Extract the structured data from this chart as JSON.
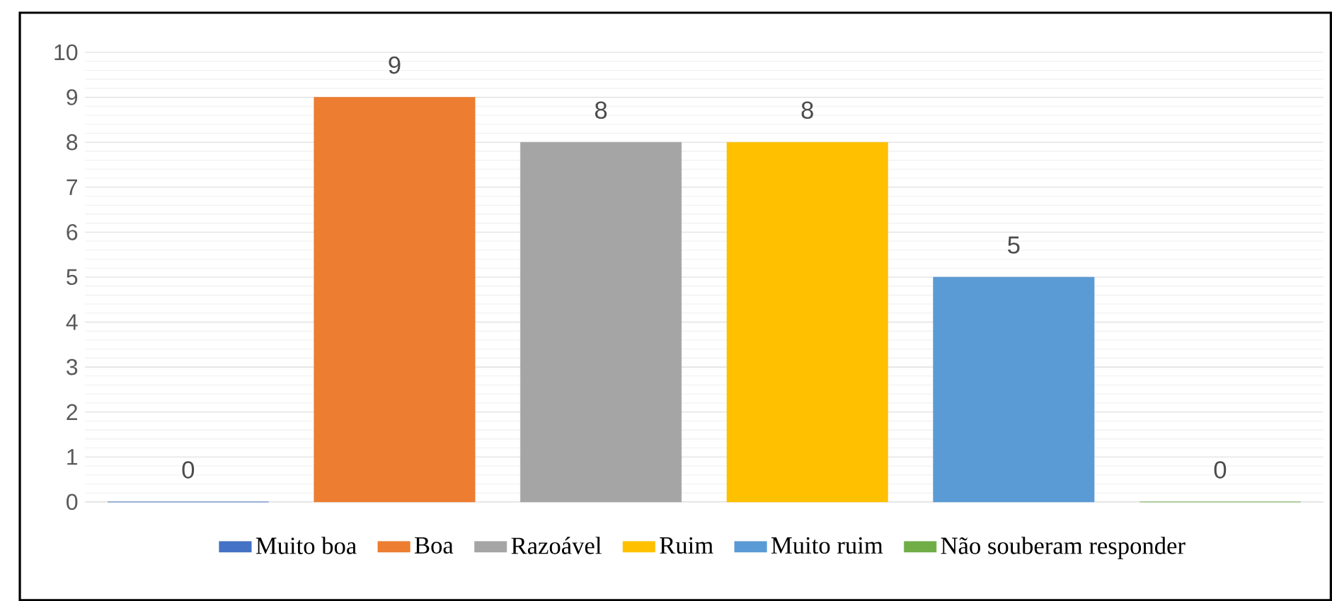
{
  "chart_data": {
    "type": "bar",
    "categories": [
      null,
      null,
      null,
      null,
      null,
      null
    ],
    "series": [
      {
        "name": "Muito boa",
        "color": "#4472c4",
        "values": [
          0,
          null,
          null,
          null,
          null,
          null
        ]
      },
      {
        "name": "Boa",
        "color": "#ed7d31",
        "values": [
          null,
          9,
          null,
          null,
          null,
          null
        ]
      },
      {
        "name": "Razoável",
        "color": "#a5a5a5",
        "values": [
          null,
          null,
          8,
          null,
          null,
          null
        ]
      },
      {
        "name": "Ruim",
        "color": "#ffc000",
        "values": [
          null,
          null,
          null,
          8,
          null,
          null
        ]
      },
      {
        "name": "Muito ruim",
        "color": "#5b9bd5",
        "values": [
          null,
          null,
          null,
          null,
          5,
          null
        ]
      },
      {
        "name": "Não souberam responder",
        "color": "#70ad47",
        "values": [
          null,
          null,
          null,
          null,
          null,
          0
        ]
      }
    ],
    "ylim": [
      0,
      10
    ],
    "yticks": [
      0,
      1,
      2,
      3,
      4,
      5,
      6,
      7,
      8,
      9,
      10
    ],
    "grid": "y",
    "legend": "bottom",
    "data_labels": true
  }
}
